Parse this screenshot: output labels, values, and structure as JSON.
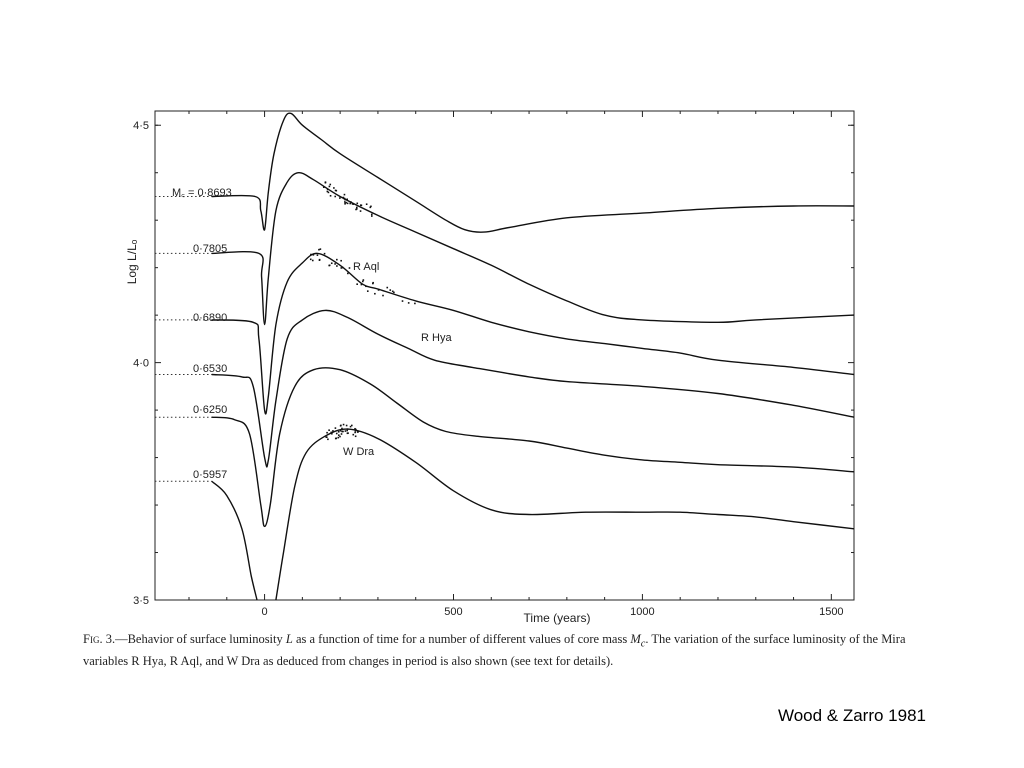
{
  "chart_data": {
    "type": "line",
    "title": "",
    "xlabel": "Time (years)",
    "ylabel": "Log L/Lₒ",
    "xlim": [
      -290,
      1560
    ],
    "ylim": [
      3.5,
      4.53
    ],
    "x_ticks": [
      {
        "value": 0,
        "label": "0"
      },
      {
        "value": 500,
        "label": "500"
      },
      {
        "value": 1000,
        "label": "1000"
      },
      {
        "value": 1500,
        "label": "1500"
      }
    ],
    "y_ticks": [
      {
        "value": 4.5,
        "label": "4·5"
      },
      {
        "value": 4.0,
        "label": "4·0"
      },
      {
        "value": 3.5,
        "label": "3·5"
      }
    ],
    "series": [
      {
        "name": "M꜀ = 0·8693",
        "points": [
          [
            -290,
            4.35
          ],
          [
            -140,
            4.35
          ],
          [
            -25,
            4.35
          ],
          [
            -10,
            4.32
          ],
          [
            0,
            4.28
          ],
          [
            10,
            4.36
          ],
          [
            25,
            4.44
          ],
          [
            50,
            4.51
          ],
          [
            70,
            4.525
          ],
          [
            100,
            4.5
          ],
          [
            150,
            4.47
          ],
          [
            200,
            4.44
          ],
          [
            300,
            4.39
          ],
          [
            400,
            4.34
          ],
          [
            480,
            4.3
          ],
          [
            530,
            4.28
          ],
          [
            580,
            4.275
          ],
          [
            650,
            4.285
          ],
          [
            800,
            4.305
          ],
          [
            1000,
            4.315
          ],
          [
            1200,
            4.325
          ],
          [
            1400,
            4.33
          ],
          [
            1560,
            4.33
          ]
        ]
      },
      {
        "name": "0·7805",
        "points": [
          [
            -290,
            4.23
          ],
          [
            -140,
            4.23
          ],
          [
            -15,
            4.23
          ],
          [
            -8,
            4.18
          ],
          [
            0,
            4.08
          ],
          [
            10,
            4.18
          ],
          [
            30,
            4.32
          ],
          [
            60,
            4.38
          ],
          [
            90,
            4.4
          ],
          [
            130,
            4.385
          ],
          [
            200,
            4.35
          ],
          [
            300,
            4.31
          ],
          [
            400,
            4.275
          ],
          [
            500,
            4.24
          ],
          [
            600,
            4.205
          ],
          [
            700,
            4.165
          ],
          [
            800,
            4.13
          ],
          [
            900,
            4.1
          ],
          [
            1000,
            4.09
          ],
          [
            1200,
            4.085
          ],
          [
            1300,
            4.09
          ],
          [
            1560,
            4.1
          ]
        ]
      },
      {
        "name": "0·6890",
        "points": [
          [
            -290,
            4.09
          ],
          [
            -140,
            4.09
          ],
          [
            -30,
            4.085
          ],
          [
            -15,
            4.05
          ],
          [
            0,
            3.9
          ],
          [
            10,
            3.93
          ],
          [
            30,
            4.08
          ],
          [
            60,
            4.17
          ],
          [
            100,
            4.21
          ],
          [
            140,
            4.23
          ],
          [
            200,
            4.205
          ],
          [
            260,
            4.165
          ],
          [
            300,
            4.155
          ],
          [
            400,
            4.13
          ],
          [
            500,
            4.11
          ],
          [
            600,
            4.085
          ],
          [
            700,
            4.065
          ],
          [
            800,
            4.05
          ],
          [
            900,
            4.04
          ],
          [
            1000,
            4.03
          ],
          [
            1100,
            4.02
          ],
          [
            1200,
            4.005
          ],
          [
            1400,
            3.99
          ],
          [
            1560,
            3.975
          ]
        ]
      },
      {
        "name": "0·6530",
        "points": [
          [
            -290,
            3.975
          ],
          [
            -140,
            3.975
          ],
          [
            -60,
            3.97
          ],
          [
            -30,
            3.95
          ],
          [
            0,
            3.8
          ],
          [
            10,
            3.795
          ],
          [
            30,
            3.92
          ],
          [
            60,
            4.05
          ],
          [
            100,
            4.09
          ],
          [
            160,
            4.11
          ],
          [
            220,
            4.095
          ],
          [
            300,
            4.06
          ],
          [
            380,
            4.03
          ],
          [
            450,
            4.005
          ],
          [
            550,
            3.99
          ],
          [
            700,
            3.97
          ],
          [
            800,
            3.96
          ],
          [
            1000,
            3.95
          ],
          [
            1200,
            3.935
          ],
          [
            1400,
            3.91
          ],
          [
            1560,
            3.885
          ]
        ]
      },
      {
        "name": "0·6250",
        "points": [
          [
            -290,
            3.885
          ],
          [
            -140,
            3.885
          ],
          [
            -80,
            3.88
          ],
          [
            -40,
            3.85
          ],
          [
            -10,
            3.7
          ],
          [
            0,
            3.655
          ],
          [
            15,
            3.7
          ],
          [
            40,
            3.85
          ],
          [
            80,
            3.95
          ],
          [
            130,
            3.985
          ],
          [
            200,
            3.985
          ],
          [
            280,
            3.955
          ],
          [
            350,
            3.915
          ],
          [
            420,
            3.875
          ],
          [
            480,
            3.855
          ],
          [
            560,
            3.845
          ],
          [
            700,
            3.835
          ],
          [
            800,
            3.82
          ],
          [
            900,
            3.805
          ],
          [
            1000,
            3.795
          ],
          [
            1100,
            3.79
          ],
          [
            1200,
            3.785
          ],
          [
            1400,
            3.78
          ],
          [
            1560,
            3.77
          ]
        ]
      },
      {
        "name": "0·5957",
        "points": [
          [
            -290,
            3.75
          ],
          [
            -140,
            3.75
          ],
          [
            -100,
            3.72
          ],
          [
            -60,
            3.65
          ],
          [
            -35,
            3.55
          ],
          [
            -20,
            3.5
          ]
        ],
        "segment2": [
          [
            30,
            3.5
          ],
          [
            50,
            3.6
          ],
          [
            80,
            3.74
          ],
          [
            110,
            3.81
          ],
          [
            160,
            3.845
          ],
          [
            220,
            3.86
          ],
          [
            300,
            3.84
          ],
          [
            400,
            3.79
          ],
          [
            500,
            3.73
          ],
          [
            600,
            3.69
          ],
          [
            700,
            3.68
          ],
          [
            850,
            3.685
          ],
          [
            1000,
            3.685
          ],
          [
            1100,
            3.685
          ],
          [
            1200,
            3.68
          ],
          [
            1300,
            3.675
          ],
          [
            1400,
            3.665
          ],
          [
            1560,
            3.65
          ]
        ]
      }
    ],
    "observations": [
      {
        "name": "R Aql",
        "x_range": [
          150,
          290
        ]
      },
      {
        "name": "R Hya",
        "x_range": [
          120,
          430
        ]
      },
      {
        "name": "W Dra",
        "x_range": [
          160,
          250
        ]
      }
    ],
    "grid": false,
    "legend": "none"
  },
  "curve_labels": {
    "c1": "M꜀ = 0·8693",
    "c2": "0·7805",
    "c3": "0·6890",
    "c4": "0·6530",
    "c5": "0·6250",
    "c6": "0·5957"
  },
  "star_labels": {
    "raql": "R Aql",
    "rhya": "R Hya",
    "wdra": "W Dra"
  },
  "caption": {
    "fig": "Fig. 3.",
    "p1": "—Behavior of surface luminosity ",
    "p2": "L",
    "p3": " as a function of time for a number of different values of core mass ",
    "p4": "M",
    "p4sub": "c",
    "p5": ". The variation of the surface luminosity of the Mira variables R Hya, R Aql, and W Dra as deduced from changes in period is also shown (see text for details)."
  },
  "credit": "Wood & Zarro 1981"
}
